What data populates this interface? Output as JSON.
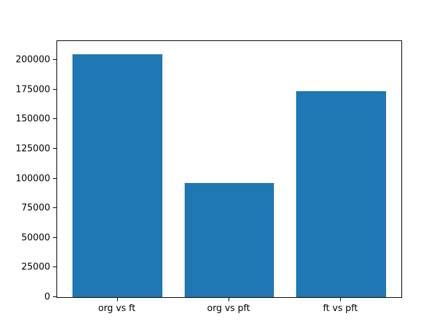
{
  "chart_data": {
    "type": "bar",
    "title": "",
    "xlabel": "",
    "ylabel": "",
    "categories": [
      "org vs ft",
      "org vs pft",
      "ft vs pft"
    ],
    "values": [
      205000,
      96000,
      174000
    ],
    "yticks": [
      0,
      25000,
      50000,
      75000,
      100000,
      125000,
      150000,
      175000,
      200000
    ],
    "ylim": [
      0,
      216000
    ],
    "xlim": [
      -0.54,
      2.54
    ],
    "bar_width": 0.8,
    "bar_color": "#1f77b4",
    "frame_color": "#000000",
    "tick_color": "#000000",
    "background_color": "#ffffff",
    "grid": false,
    "legend": null
  }
}
